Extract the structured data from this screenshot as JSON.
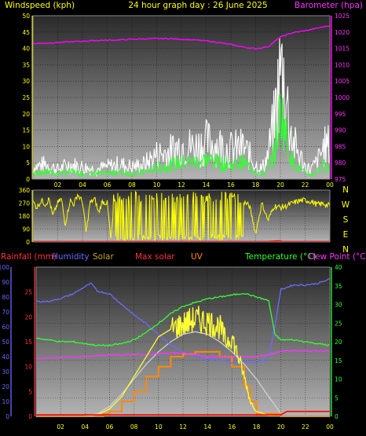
{
  "header": {
    "left_label": "Windspeed (kph)",
    "center_label": "24 hour graph day : 26 June 2025",
    "right_label": "Barometer (hpa)"
  },
  "lower_header": {
    "rainfall": "Rainfall (mm)",
    "humidity": "Humidity",
    "solar": "Solar",
    "max_solar": "Max solar",
    "uv": "UV",
    "temperature": "Temperature (°C)",
    "dew_point": "Dew Point (°C)"
  },
  "colors": {
    "wind_gust": "#ffffff",
    "wind_avg": "#33ff33",
    "barometer": "#ff00ff",
    "direction": "#ffff00",
    "rain_axis": "#ff3333",
    "humidity": "#6a6aff",
    "solar": "#ffff33",
    "max_solar": "#d0d0d0",
    "uv": "#ff8800",
    "temperature": "#33ff33",
    "dew_point": "#ff33ff",
    "rain_line": "#ff0000",
    "axis_text": "#ffff00"
  },
  "chart_data": [
    {
      "type": "line",
      "name": "wind-baro",
      "x_ticks": [
        "02",
        "04",
        "06",
        "08",
        "10",
        "12",
        "14",
        "16",
        "18",
        "20",
        "22",
        "00"
      ],
      "ylim_left": [
        0,
        50
      ],
      "yticks_left": [
        "0",
        "5",
        "10",
        "15",
        "20",
        "25",
        "30",
        "35",
        "40",
        "45",
        "50"
      ],
      "ylim_right": [
        975,
        1025
      ],
      "yticks_right": [
        "975",
        "980",
        "985",
        "990",
        "995",
        "1000",
        "1005",
        "1010",
        "1015",
        "1020",
        "1025"
      ],
      "series": [
        {
          "key": "barometer",
          "axis": "right",
          "x": [
            0,
            1,
            2,
            3,
            4,
            5,
            6,
            7,
            8,
            9,
            10,
            11,
            12,
            13,
            14,
            15,
            16,
            17,
            18,
            19,
            20,
            21,
            22,
            23,
            24
          ],
          "y": [
            1016.5,
            1016.6,
            1016.8,
            1017.0,
            1017.2,
            1017.4,
            1017.5,
            1017.6,
            1017.8,
            1017.9,
            1018.0,
            1018.0,
            1017.8,
            1017.6,
            1017.3,
            1016.8,
            1016.2,
            1015.4,
            1014.9,
            1015.5,
            1018.5,
            1019.8,
            1020.4,
            1021.2,
            1022.0
          ]
        },
        {
          "key": "wind_gust",
          "axis": "left",
          "x": [
            0,
            1,
            2,
            3,
            4,
            5,
            6,
            7,
            8,
            9,
            10,
            11,
            12,
            13,
            14,
            15,
            16,
            17,
            18,
            18.5,
            19,
            19.5,
            19.8,
            20,
            20.3,
            20.6,
            21,
            21.5,
            22,
            22.5,
            23,
            23.5,
            24
          ],
          "y": [
            5,
            6,
            4,
            6,
            5,
            4,
            5,
            6,
            5,
            6,
            10,
            11,
            14,
            13,
            15,
            14,
            12,
            13,
            6,
            4,
            10,
            23,
            35,
            44,
            40,
            28,
            15,
            10,
            5,
            4,
            7,
            13,
            14
          ]
        },
        {
          "key": "wind_avg",
          "axis": "left",
          "x": [
            0,
            1,
            2,
            3,
            4,
            5,
            6,
            7,
            8,
            9,
            10,
            11,
            12,
            13,
            14,
            15,
            16,
            17,
            18,
            18.5,
            19,
            19.5,
            19.8,
            20,
            20.3,
            20.6,
            21,
            21.5,
            22,
            22.5,
            23,
            23.5,
            24
          ],
          "y": [
            2,
            2.5,
            2,
            2.5,
            2,
            2,
            2,
            2.5,
            2,
            2.5,
            4,
            5,
            6,
            6,
            7,
            6,
            5,
            6,
            3,
            1.5,
            4,
            9,
            18,
            26,
            20,
            12,
            6,
            4,
            2,
            1.5,
            3,
            5,
            4
          ]
        }
      ]
    },
    {
      "type": "line",
      "name": "wind-direction",
      "ylim": [
        0,
        360
      ],
      "yticks": [
        "0",
        "90",
        "180",
        "270",
        "360"
      ],
      "compass": [
        "N",
        "W",
        "S",
        "E",
        "N"
      ],
      "series": [
        {
          "key": "direction",
          "x": [
            0,
            0.3,
            0.7,
            1,
            1.3,
            1.6,
            2,
            2.3,
            2.6,
            3,
            3.3,
            3.6,
            4,
            4.3,
            4.6,
            5,
            5.3,
            5.6,
            6,
            6.3,
            6.6,
            7,
            7.3,
            7.6,
            8,
            8.3,
            8.6,
            9,
            9.3,
            9.6,
            10,
            10.3,
            10.6,
            11,
            11.3,
            11.6,
            12,
            12.3,
            12.6,
            13,
            13.3,
            13.6,
            14,
            14.3,
            14.6,
            15,
            15.3,
            15.6,
            16,
            16.3,
            16.6,
            17,
            17.5,
            18,
            18.5,
            19,
            19.5,
            20,
            20.5,
            21,
            21.5,
            22,
            22.5,
            23,
            23.5,
            24
          ],
          "y": [
            280,
            240,
            290,
            260,
            300,
            180,
            270,
            300,
            120,
            290,
            260,
            330,
            280,
            60,
            270,
            300,
            200,
            280,
            270,
            10,
            300,
            250,
            40,
            280,
            300,
            20,
            270,
            330,
            60,
            280,
            10,
            300,
            30,
            270,
            20,
            320,
            10,
            290,
            40,
            300,
            20,
            310,
            10,
            300,
            40,
            280,
            10,
            320,
            30,
            270,
            10,
            280,
            250,
            60,
            270,
            150,
            250,
            240,
            250,
            270,
            285,
            290,
            280,
            260,
            265,
            250
          ]
        },
        {
          "key": "rain_line",
          "x": [
            0,
            19,
            19.8,
            20.2,
            21,
            24
          ],
          "y": [
            3,
            3,
            8,
            3,
            3,
            3
          ]
        }
      ]
    },
    {
      "type": "line",
      "name": "solar-temp",
      "x_ticks": [
        "02",
        "04",
        "06",
        "08",
        "10",
        "12",
        "14",
        "16",
        "18",
        "20",
        "22",
        "00"
      ],
      "axis_rain": {
        "ylim": [
          0,
          30
        ],
        "yticks": [
          "0",
          "5",
          "10",
          "15",
          "20",
          "25"
        ]
      },
      "axis_humidity": {
        "ylim": [
          0,
          100
        ],
        "yticks": [
          "0",
          "10",
          "20",
          "30",
          "40",
          "50",
          "60",
          "70",
          "80",
          "90",
          "100"
        ]
      },
      "axis_temp": {
        "ylim": [
          0,
          40
        ],
        "yticks": [
          "0",
          "5",
          "10",
          "15",
          "20",
          "25",
          "30",
          "35",
          "40"
        ]
      },
      "series": [
        {
          "key": "humidity",
          "axis": "humidity",
          "x": [
            0,
            1,
            2,
            3,
            4,
            4.5,
            5,
            6,
            7,
            8,
            9,
            10,
            11,
            12,
            13,
            14,
            15,
            16,
            17,
            18,
            18.8,
            19,
            19.5,
            20,
            21,
            22,
            23,
            24
          ],
          "y": [
            77,
            77,
            79,
            82,
            87,
            89,
            84,
            82,
            75,
            68,
            62,
            55,
            48,
            43,
            40,
            38,
            38,
            36,
            37,
            36,
            38,
            40,
            60,
            85,
            88,
            88,
            89,
            92
          ]
        },
        {
          "key": "temperature",
          "axis": "temp",
          "x": [
            0,
            1,
            2,
            3,
            4,
            5,
            6,
            7,
            8,
            9,
            10,
            11,
            12,
            13,
            14,
            15,
            16,
            17,
            18,
            19,
            19.5,
            20,
            21,
            22,
            23,
            24
          ],
          "y": [
            21,
            20.5,
            20,
            20,
            19.5,
            19,
            19,
            19.5,
            20.5,
            22.5,
            25,
            27.5,
            29.5,
            30.5,
            31.5,
            32,
            32.5,
            33,
            32,
            31,
            22,
            20.5,
            20.5,
            20,
            19.5,
            19
          ]
        },
        {
          "key": "dew_point",
          "axis": "temp",
          "x": [
            0,
            2,
            4,
            6,
            8,
            10,
            12,
            14,
            16,
            18,
            19,
            20,
            22,
            24
          ],
          "y": [
            15.5,
            15.8,
            16,
            16.5,
            16.5,
            16.8,
            17,
            16,
            16,
            16,
            16.5,
            17.5,
            17.5,
            17.5
          ]
        },
        {
          "key": "max_solar",
          "axis": "rain",
          "x": [
            4,
            5,
            6,
            7,
            8,
            9,
            10,
            11,
            12,
            13,
            14,
            15,
            16,
            17,
            18,
            19,
            20
          ],
          "y": [
            0,
            0.5,
            2,
            4.5,
            7.5,
            10.5,
            13,
            15,
            16.5,
            17,
            16.5,
            15,
            13,
            10.5,
            7.5,
            4,
            0.5
          ]
        },
        {
          "key": "solar",
          "axis": "rain",
          "x": [
            4,
            5,
            6,
            7,
            8,
            9,
            10,
            11,
            12,
            13,
            14,
            15,
            15.5,
            16,
            16.5,
            17,
            17.5,
            18,
            19,
            20
          ],
          "y": [
            0,
            0.3,
            1.5,
            4,
            8,
            12,
            16,
            17.5,
            18.5,
            19.5,
            19,
            18,
            15,
            16,
            12,
            8,
            3,
            1,
            0.2,
            0
          ]
        },
        {
          "key": "uv",
          "axis": "rain",
          "step": true,
          "x": [
            0,
            5,
            5.5,
            6,
            7,
            8,
            9,
            10,
            11,
            12,
            13,
            14,
            15,
            16,
            17,
            17.5,
            18,
            20,
            21,
            22,
            23,
            24
          ],
          "y": [
            0,
            0,
            0.5,
            1,
            3,
            5,
            8,
            10,
            12,
            12.5,
            13,
            13,
            12,
            10,
            6,
            3,
            0.5,
            0,
            0,
            0,
            0,
            0
          ]
        },
        {
          "key": "rain_line",
          "axis": "rain",
          "x": [
            0,
            20,
            20.5,
            21,
            21.5,
            24
          ],
          "y": [
            0.3,
            0.3,
            1,
            1,
            1,
            1
          ]
        }
      ]
    }
  ]
}
